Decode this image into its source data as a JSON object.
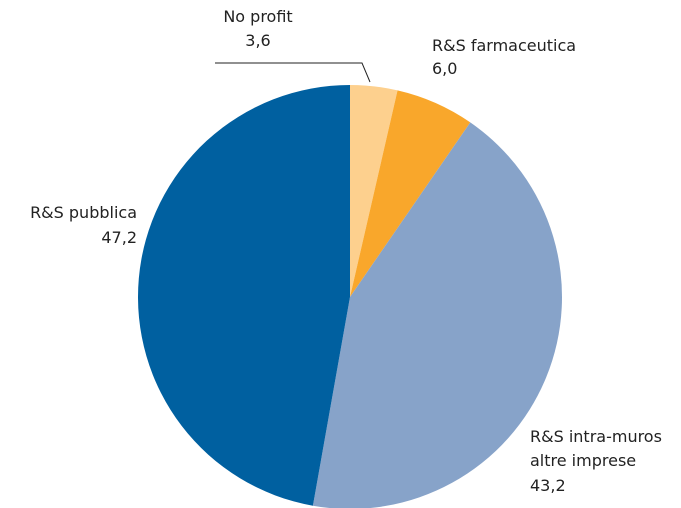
{
  "chart_data": {
    "type": "pie",
    "categories": [
      "No profit",
      "R&S farmaceutica",
      "R&S intra-muros\naltre imprese",
      "R&S pubblica"
    ],
    "values": [
      3.6,
      6.0,
      43.2,
      47.2
    ],
    "value_labels": [
      "3,6",
      "6,0",
      "43,2",
      "47,2"
    ],
    "colors": [
      "#fdd08e",
      "#f9a72b",
      "#87a3c9",
      "#0060a0"
    ]
  }
}
